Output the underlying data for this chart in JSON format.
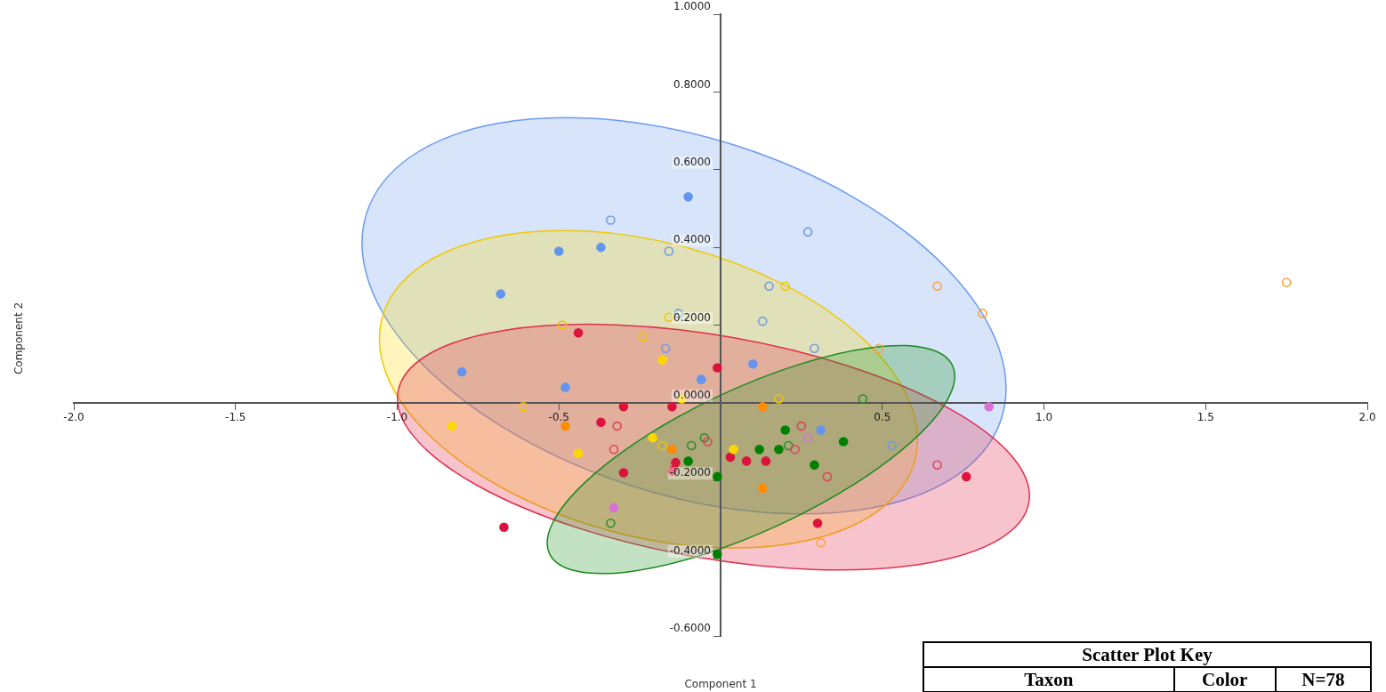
{
  "chart_data": {
    "type": "scatter",
    "xlabel": "Component 1",
    "ylabel": "Component 2",
    "legend": false,
    "grid": false,
    "xlim": [
      -2.0,
      2.0
    ],
    "xticks": [
      {
        "value": -2,
        "label": "-2.0"
      },
      {
        "value": -1.5,
        "label": "-1.5"
      },
      {
        "value": -1,
        "label": "-1.0"
      },
      {
        "value": -0.5,
        "label": "-0.5"
      },
      {
        "value": 0,
        "label": null
      },
      {
        "value": 0.5,
        "label": "0.5"
      },
      {
        "value": 1,
        "label": "1.0"
      },
      {
        "value": 1.5,
        "label": "1.5"
      },
      {
        "value": 2,
        "label": "2.0"
      }
    ],
    "ylim": [
      -0.6,
      1.0
    ],
    "yticks": [
      {
        "value": -0.6,
        "label": "-0.6000"
      },
      {
        "value": -0.4,
        "label": "-0.4000"
      },
      {
        "value": -0.2,
        "label": "-0.2000"
      },
      {
        "value": 0,
        "label": "0.0000"
      },
      {
        "value": 0.2,
        "label": "0.2000"
      },
      {
        "value": 0.4,
        "label": "0.4000"
      },
      {
        "value": 0.6,
        "label": "0.6000"
      },
      {
        "value": 0.8,
        "label": "0.8000"
      },
      {
        "value": 1,
        "label": "1.0000"
      }
    ],
    "annotations": [
      "Scatter Plot Key",
      "Taxon",
      "Color",
      "N=78"
    ],
    "series": [
      {
        "color": "#6495ed",
        "marker": "circle",
        "x": [
          -0.1,
          -0.5,
          -0.37,
          -0.68,
          -0.8,
          -0.06,
          -0.48,
          0.1,
          0.31
        ],
        "values": [
          0.53,
          0.39,
          0.4,
          0.28,
          0.08,
          0.06,
          0.04,
          0.1,
          -0.07
        ]
      },
      {
        "color": "#6f9ae8",
        "marker": "open circle",
        "x": [
          -0.34,
          -0.16,
          -0.13,
          -0.17,
          0.27,
          0.15,
          0.13,
          0.29,
          0.53
        ],
        "values": [
          0.47,
          0.39,
          0.23,
          0.14,
          0.44,
          0.3,
          0.21,
          0.14,
          -0.11
        ]
      },
      {
        "color": "#ffd700",
        "marker": "circle",
        "x": [
          -0.18,
          -0.12,
          -0.83,
          -0.44,
          -0.21,
          0.04
        ],
        "values": [
          0.11,
          0.01,
          -0.06,
          -0.13,
          -0.09,
          -0.12
        ]
      },
      {
        "color": "#f2c500",
        "marker": "open circle",
        "x": [
          -0.16,
          -0.49,
          -0.24,
          -0.61,
          0.2,
          0.18,
          -0.18
        ],
        "values": [
          0.22,
          0.2,
          0.17,
          -0.01,
          0.3,
          0.01,
          -0.11
        ]
      },
      {
        "color": "#dc143c",
        "marker": "circle",
        "x": [
          -0.44,
          -0.01,
          -0.3,
          -0.15,
          -0.37,
          -0.139,
          -0.3,
          -0.149,
          0.03,
          -0.67,
          0.08,
          0.14,
          0.76,
          0.3
        ],
        "values": [
          0.18,
          0.09,
          -0.01,
          -0.01,
          -0.05,
          -0.154,
          -0.18,
          -0.175,
          -0.14,
          -0.32,
          -0.15,
          -0.15,
          -0.19,
          -0.31
        ]
      },
      {
        "color": "#e0405a",
        "marker": "open circle",
        "x": [
          -0.32,
          -0.33,
          -0.04,
          0.25,
          0.23,
          0.67,
          0.33
        ],
        "values": [
          -0.06,
          -0.12,
          -0.1,
          -0.06,
          -0.12,
          -0.16,
          -0.19
        ]
      },
      {
        "color": "#008000",
        "marker": "circle",
        "x": [
          -0.1,
          -0.01,
          -0.01,
          0.2,
          0.38,
          0.12,
          0.18,
          0.29
        ],
        "values": [
          -0.15,
          -0.19,
          -0.39,
          -0.07,
          -0.1,
          -0.12,
          -0.12,
          -0.16
        ]
      },
      {
        "color": "#2e8b2e",
        "marker": "open circle",
        "x": [
          0.44,
          -0.09,
          -0.05,
          -0.34,
          0.21
        ],
        "values": [
          0.01,
          -0.11,
          -0.09,
          -0.31,
          -0.11
        ]
      },
      {
        "color": "#ff8c00",
        "marker": "circle",
        "x": [
          0.13,
          -0.48,
          -0.15,
          0.13
        ],
        "values": [
          -0.01,
          -0.06,
          -0.12,
          -0.22
        ]
      },
      {
        "color": "#ffa040",
        "marker": "open circle",
        "x": [
          0.67,
          0.81,
          0.49,
          1.75,
          0.31
        ],
        "values": [
          0.3,
          0.23,
          0.14,
          0.31,
          -0.36
        ]
      },
      {
        "color": "#da70d6",
        "marker": "circle",
        "x": [
          0.83,
          -0.33
        ],
        "values": [
          -0.01,
          -0.27
        ]
      },
      {
        "color": "#da70d6",
        "marker": "open circle",
        "x": [
          0.27
        ],
        "values": [
          -0.09
        ]
      }
    ]
  }
}
